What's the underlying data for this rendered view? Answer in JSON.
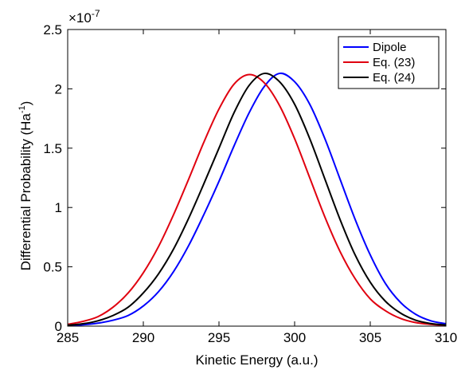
{
  "chart_data": {
    "type": "line",
    "title": "",
    "xlabel": "Kinetic Energy (a.u.)",
    "ylabel_main": "Differential Probability (Ha",
    "ylabel_sup": "-1",
    "ylabel_close": ")",
    "y_multiplier_base": "×10",
    "y_multiplier_exp": "-7",
    "xlim": [
      285,
      310
    ],
    "ylim": [
      0,
      2.5
    ],
    "xticks": [
      285,
      290,
      295,
      300,
      305,
      310
    ],
    "xtick_labels": [
      "285",
      "290",
      "295",
      "300",
      "305",
      "310"
    ],
    "yticks": [
      0,
      0.5,
      1,
      1.5,
      2,
      2.5
    ],
    "ytick_labels": [
      "0",
      "0.5",
      "1",
      "1.5",
      "2",
      "2.5"
    ],
    "grid": false,
    "legend_position": "top-right",
    "series": [
      {
        "name": "Dipole",
        "color": "#0000ff",
        "x": [
          285,
          286,
          287,
          288,
          289,
          290,
          291,
          292,
          293,
          294,
          295,
          296,
          297,
          298,
          299,
          300,
          301,
          302,
          303,
          304,
          305,
          306,
          307,
          308,
          309,
          310
        ],
        "y": [
          0.005,
          0.012,
          0.025,
          0.05,
          0.09,
          0.17,
          0.29,
          0.46,
          0.68,
          0.94,
          1.22,
          1.52,
          1.8,
          2.02,
          2.13,
          2.06,
          1.87,
          1.58,
          1.24,
          0.9,
          0.6,
          0.36,
          0.2,
          0.1,
          0.045,
          0.02
        ]
      },
      {
        "name": "Eq. (23)",
        "color": "#e0000f",
        "x": [
          285,
          286,
          287,
          288,
          289,
          290,
          291,
          292,
          293,
          294,
          295,
          296,
          297,
          298,
          299,
          300,
          301,
          302,
          303,
          304,
          305,
          306,
          307,
          308,
          309,
          310
        ],
        "y": [
          0.015,
          0.04,
          0.08,
          0.16,
          0.28,
          0.45,
          0.67,
          0.94,
          1.24,
          1.55,
          1.83,
          2.04,
          2.12,
          2.05,
          1.86,
          1.58,
          1.25,
          0.92,
          0.63,
          0.4,
          0.23,
          0.13,
          0.065,
          0.03,
          0.015,
          0.006
        ]
      },
      {
        "name": "Eq. (24)",
        "color": "#000000",
        "x": [
          285,
          286,
          287,
          288,
          289,
          290,
          291,
          292,
          293,
          294,
          295,
          296,
          297,
          298,
          299,
          300,
          301,
          302,
          303,
          304,
          305,
          306,
          307,
          308,
          309,
          310
        ],
        "y": [
          0.008,
          0.02,
          0.045,
          0.09,
          0.16,
          0.28,
          0.44,
          0.65,
          0.91,
          1.2,
          1.5,
          1.8,
          2.03,
          2.13,
          2.06,
          1.87,
          1.58,
          1.24,
          0.9,
          0.6,
          0.37,
          0.21,
          0.11,
          0.05,
          0.022,
          0.01
        ]
      }
    ]
  }
}
